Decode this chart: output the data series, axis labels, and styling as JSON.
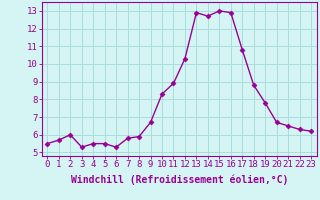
{
  "x": [
    0,
    1,
    2,
    3,
    4,
    5,
    6,
    7,
    8,
    9,
    10,
    11,
    12,
    13,
    14,
    15,
    16,
    17,
    18,
    19,
    20,
    21,
    22,
    23
  ],
  "y": [
    5.5,
    5.7,
    6.0,
    5.3,
    5.5,
    5.5,
    5.3,
    5.8,
    5.9,
    6.7,
    8.3,
    8.9,
    10.3,
    12.9,
    12.7,
    13.0,
    12.9,
    10.8,
    8.8,
    7.8,
    6.7,
    6.5,
    6.3,
    6.2
  ],
  "line_color": "#990099",
  "marker": "D",
  "marker_size": 2.5,
  "bg_color": "#d5f5f5",
  "grid_color": "#aadddd",
  "xlabel": "Windchill (Refroidissement éolien,°C)",
  "xlabel_color": "#990099",
  "xlabel_fontsize": 7,
  "ylabel_ticks": [
    5,
    6,
    7,
    8,
    9,
    10,
    11,
    12,
    13
  ],
  "xlim": [
    -0.5,
    23.5
  ],
  "ylim": [
    4.8,
    13.5
  ],
  "tick_color": "#990099",
  "tick_fontsize": 6.5,
  "spine_color": "#990099",
  "line_width": 1.0
}
